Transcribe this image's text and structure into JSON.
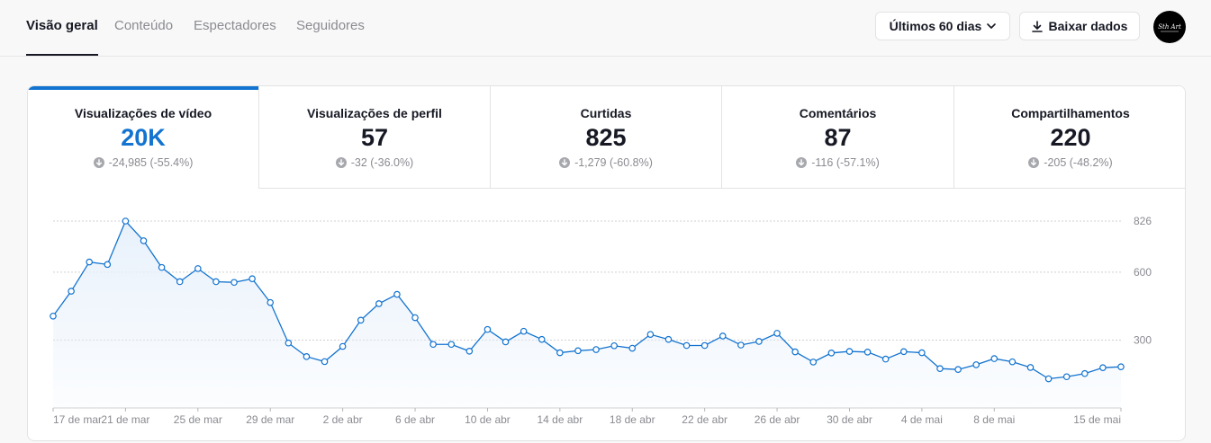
{
  "nav": {
    "tabs": [
      {
        "label": "Visão geral",
        "active": true
      },
      {
        "label": "Conteúdo",
        "active": false
      },
      {
        "label": "Espectadores",
        "active": false
      },
      {
        "label": "Seguidores",
        "active": false
      }
    ]
  },
  "toolbar": {
    "date_range_label": "Últimos 60 dias",
    "date_range_icon": "chevron-down-icon",
    "download_label": "Baixar dados",
    "download_icon": "download-icon",
    "avatar_text": "Sth Art"
  },
  "colors": {
    "accent": "#1273d0",
    "decrease": "#8a8b91",
    "area_fill": "#e8f1fb"
  },
  "metrics": [
    {
      "label": "Visualizações de vídeo",
      "value": "20K",
      "change": "-24,985 (-55.4%)",
      "trend": "down",
      "active": true
    },
    {
      "label": "Visualizações de perfil",
      "value": "57",
      "change": "-32 (-36.0%)",
      "trend": "down",
      "active": false
    },
    {
      "label": "Curtidas",
      "value": "825",
      "change": "-1,279 (-60.8%)",
      "trend": "down",
      "active": false
    },
    {
      "label": "Comentários",
      "value": "87",
      "change": "-116 (-57.1%)",
      "trend": "down",
      "active": false
    },
    {
      "label": "Compartilhamentos",
      "value": "220",
      "change": "-205 (-48.2%)",
      "trend": "down",
      "active": false
    }
  ],
  "chart_data": {
    "type": "area",
    "y_axis_position": "right",
    "yticks": [
      300,
      600,
      826
    ],
    "ylim": [
      0,
      826
    ],
    "x_tick_labels": [
      "17 de mar",
      "21 de mar",
      "25 de mar",
      "29 de mar",
      "2 de abr",
      "6 de abr",
      "10 de abr",
      "14 de abr",
      "18 de abr",
      "22 de abr",
      "26 de abr",
      "30 de abr",
      "4 de mai",
      "8 de mai",
      "15 de mai"
    ],
    "x_tick_index": [
      0,
      4,
      8,
      12,
      16,
      20,
      24,
      28,
      32,
      36,
      40,
      44,
      48,
      52,
      59
    ],
    "grid": true,
    "values": [
      406,
      516,
      645,
      634,
      826,
      739,
      621,
      558,
      616,
      558,
      555,
      571,
      466,
      287,
      227,
      205,
      272,
      388,
      461,
      502,
      399,
      281,
      281,
      251,
      347,
      292,
      339,
      303,
      244,
      253,
      258,
      275,
      264,
      325,
      303,
      276,
      276,
      318,
      278,
      294,
      330,
      248,
      203,
      243,
      250,
      247,
      216,
      249,
      244,
      174,
      170,
      191,
      218,
      204,
      179,
      129,
      138,
      152,
      178,
      182
    ]
  }
}
